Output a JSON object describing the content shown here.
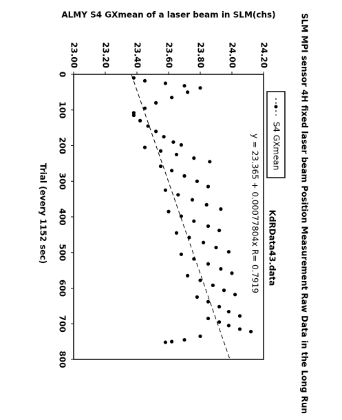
{
  "chart_data": {
    "type": "scatter",
    "title": "SLM MPI sensor 4H fixed laser beam Position Measurement Raw Data in the Long Run",
    "x_label": "Trial (every 1152 sec)",
    "y_label": "ALMY S4 GXmean of a laser beam in SLM(chs)",
    "annotation": "KdRData43.data",
    "trend_label": "y = 23.365 + 0.00077804x  R= 0.7919",
    "trend": {
      "intercept": 23.365,
      "slope": 0.00077804
    },
    "xlim": [
      0,
      800
    ],
    "xticks": [
      0,
      100,
      200,
      300,
      400,
      500,
      600,
      700,
      800
    ],
    "ylim": [
      23.0,
      24.2
    ],
    "yticks": [
      {
        "value": 23.0,
        "label": "23.00"
      },
      {
        "value": 23.2,
        "label": "23.20"
      },
      {
        "value": 23.4,
        "label": "23.40"
      },
      {
        "value": 23.6,
        "label": "23.60"
      },
      {
        "value": 23.8,
        "label": "23.80"
      },
      {
        "value": 24.0,
        "label": "24.00"
      },
      {
        "value": 24.2,
        "label": "24.20"
      }
    ],
    "series": [
      {
        "name": "S4 GXmean",
        "color": "#000000",
        "x": [
          10,
          18,
          25,
          32,
          38,
          50,
          65,
          80,
          95,
          108,
          115,
          130,
          145,
          160,
          175,
          190,
          198,
          205,
          215,
          225,
          235,
          245,
          258,
          270,
          285,
          300,
          315,
          325,
          338,
          352,
          366,
          378,
          385,
          398,
          412,
          426,
          438,
          445,
          458,
          472,
          486,
          498,
          505,
          518,
          532,
          546,
          558,
          565,
          578,
          592,
          606,
          618,
          625,
          638,
          652,
          666,
          678,
          685,
          695,
          705,
          715,
          722,
          735,
          745,
          750,
          752
        ],
        "values": [
          23.38,
          23.45,
          23.58,
          23.7,
          23.8,
          23.72,
          23.62,
          23.52,
          23.45,
          23.38,
          23.38,
          23.42,
          23.47,
          23.52,
          23.57,
          23.63,
          23.68,
          23.45,
          23.55,
          23.65,
          23.76,
          23.86,
          23.55,
          23.62,
          23.7,
          23.78,
          23.85,
          23.58,
          23.66,
          23.75,
          23.84,
          23.93,
          23.6,
          23.68,
          23.76,
          23.85,
          23.92,
          23.65,
          23.73,
          23.82,
          23.9,
          23.98,
          23.68,
          23.76,
          23.85,
          23.93,
          24.0,
          23.72,
          23.8,
          23.88,
          23.95,
          24.02,
          23.78,
          23.85,
          23.92,
          23.98,
          24.05,
          23.85,
          23.92,
          23.98,
          24.05,
          24.12,
          23.8,
          23.7,
          23.62,
          23.58
        ]
      }
    ]
  }
}
